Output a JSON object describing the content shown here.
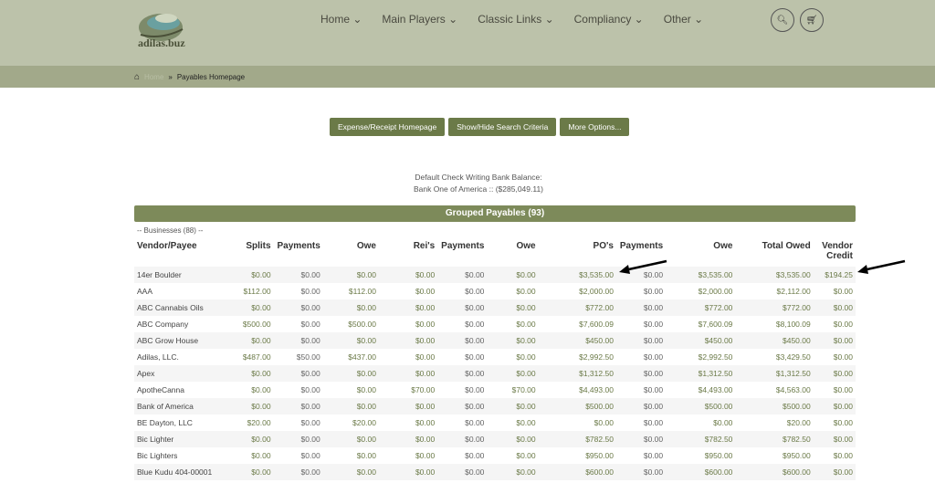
{
  "logo": {
    "text": "adilas.buz"
  },
  "nav": [
    "Home",
    "Main Players",
    "Classic Links",
    "Compliancy",
    "Other"
  ],
  "breadcrumb": {
    "home": "Home",
    "current": "Payables Homepage"
  },
  "buttons": [
    "Expense/Receipt Homepage",
    "Show/Hide Search Criteria",
    "More Options..."
  ],
  "balance": {
    "label": "Default Check Writing Bank Balance:",
    "value": "Bank One of America :: ($285,049.11)"
  },
  "group": {
    "title": "Grouped Payables (93)",
    "subtitle": "-- Businesses (88) --"
  },
  "columns": [
    "Vendor/Payee",
    "Splits",
    "Payments",
    "Owe",
    "Rei's",
    "Payments",
    "Owe",
    "PO's",
    "Payments",
    "Owe",
    "Total Owed",
    "Vendor Credit"
  ],
  "rows": [
    [
      "14er Boulder",
      "$0.00",
      "$0.00",
      "$0.00",
      "$0.00",
      "$0.00",
      "$0.00",
      "$3,535.00",
      "$0.00",
      "$3,535.00",
      "$3,535.00",
      "$194.25"
    ],
    [
      "AAA",
      "$112.00",
      "$0.00",
      "$112.00",
      "$0.00",
      "$0.00",
      "$0.00",
      "$2,000.00",
      "$0.00",
      "$2,000.00",
      "$2,112.00",
      "$0.00"
    ],
    [
      "ABC Cannabis Oils",
      "$0.00",
      "$0.00",
      "$0.00",
      "$0.00",
      "$0.00",
      "$0.00",
      "$772.00",
      "$0.00",
      "$772.00",
      "$772.00",
      "$0.00"
    ],
    [
      "ABC Company",
      "$500.00",
      "$0.00",
      "$500.00",
      "$0.00",
      "$0.00",
      "$0.00",
      "$7,600.09",
      "$0.00",
      "$7,600.09",
      "$8,100.09",
      "$0.00"
    ],
    [
      "ABC Grow House",
      "$0.00",
      "$0.00",
      "$0.00",
      "$0.00",
      "$0.00",
      "$0.00",
      "$450.00",
      "$0.00",
      "$450.00",
      "$450.00",
      "$0.00"
    ],
    [
      "Adilas, LLC.",
      "$487.00",
      "$50.00",
      "$437.00",
      "$0.00",
      "$0.00",
      "$0.00",
      "$2,992.50",
      "$0.00",
      "$2,992.50",
      "$3,429.50",
      "$0.00"
    ],
    [
      "Apex",
      "$0.00",
      "$0.00",
      "$0.00",
      "$0.00",
      "$0.00",
      "$0.00",
      "$1,312.50",
      "$0.00",
      "$1,312.50",
      "$1,312.50",
      "$0.00"
    ],
    [
      "ApotheCanna",
      "$0.00",
      "$0.00",
      "$0.00",
      "$70.00",
      "$0.00",
      "$70.00",
      "$4,493.00",
      "$0.00",
      "$4,493.00",
      "$4,563.00",
      "$0.00"
    ],
    [
      "Bank of America",
      "$0.00",
      "$0.00",
      "$0.00",
      "$0.00",
      "$0.00",
      "$0.00",
      "$500.00",
      "$0.00",
      "$500.00",
      "$500.00",
      "$0.00"
    ],
    [
      "BE Dayton, LLC",
      "$20.00",
      "$0.00",
      "$20.00",
      "$0.00",
      "$0.00",
      "$0.00",
      "$0.00",
      "$0.00",
      "$0.00",
      "$20.00",
      "$0.00"
    ],
    [
      "Bic Lighter",
      "$0.00",
      "$0.00",
      "$0.00",
      "$0.00",
      "$0.00",
      "$0.00",
      "$782.50",
      "$0.00",
      "$782.50",
      "$782.50",
      "$0.00"
    ],
    [
      "Bic Lighters",
      "$0.00",
      "$0.00",
      "$0.00",
      "$0.00",
      "$0.00",
      "$0.00",
      "$950.00",
      "$0.00",
      "$950.00",
      "$950.00",
      "$0.00"
    ],
    [
      "Blue Kudu 404-00001",
      "$0.00",
      "$0.00",
      "$0.00",
      "$0.00",
      "$0.00",
      "$0.00",
      "$600.00",
      "$0.00",
      "$600.00",
      "$600.00",
      "$0.00"
    ]
  ]
}
